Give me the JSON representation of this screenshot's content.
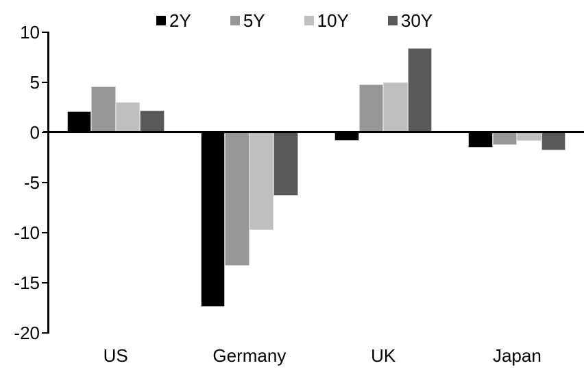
{
  "chart_data": {
    "type": "bar",
    "title": "",
    "xlabel": "",
    "ylabel": "",
    "categories": [
      "US",
      "Germany",
      "UK",
      "Japan"
    ],
    "series": [
      {
        "name": "2Y",
        "color": "#000000",
        "values": [
          2.1,
          -17.4,
          -0.8,
          -1.5
        ]
      },
      {
        "name": "5Y",
        "color": "#969696",
        "values": [
          4.6,
          -13.3,
          4.8,
          -1.2
        ]
      },
      {
        "name": "10Y",
        "color": "#bfbfbf",
        "values": [
          3.0,
          -9.7,
          5.0,
          -0.8
        ]
      },
      {
        "name": "30Y",
        "color": "#595959",
        "values": [
          2.2,
          -6.3,
          8.4,
          -1.8
        ]
      }
    ],
    "ylim": [
      -20,
      10
    ],
    "yticks": [
      10,
      5,
      0,
      -5,
      -10,
      -15,
      -20
    ],
    "grid": false,
    "legend_position": "top",
    "axis_color": "#000000",
    "background_color": "#ffffff"
  }
}
